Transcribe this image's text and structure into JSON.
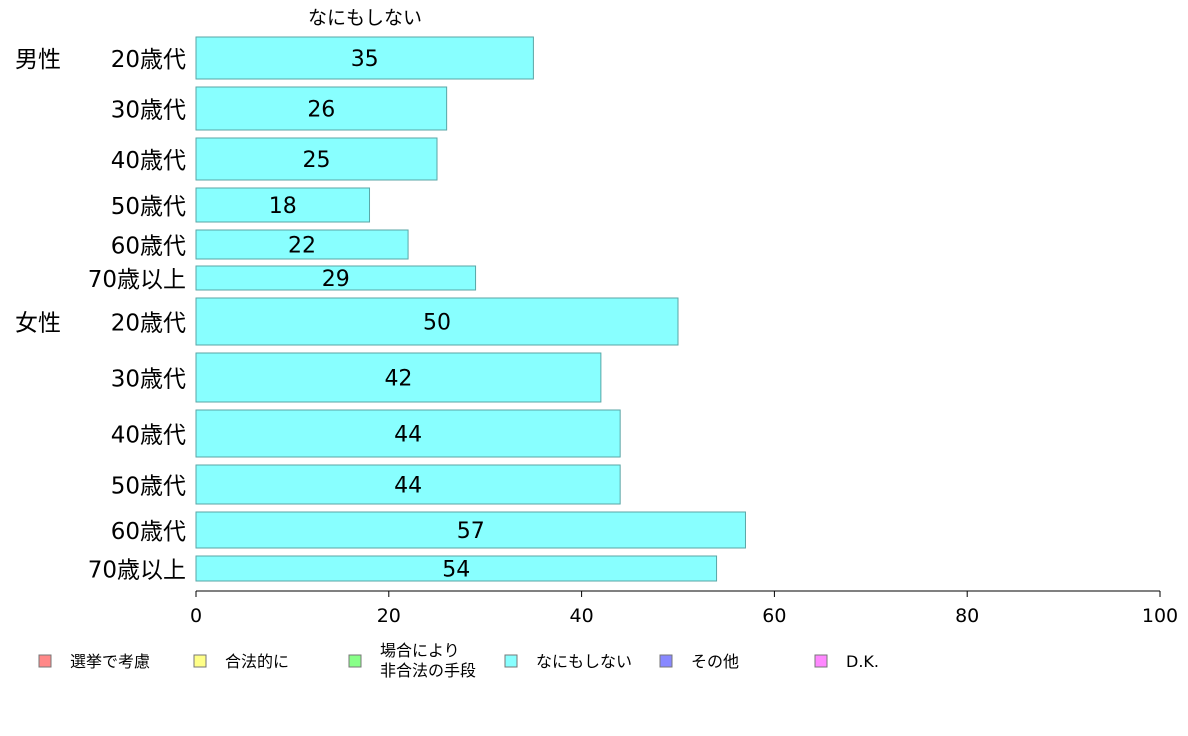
{
  "chart_data": {
    "type": "bar",
    "orientation": "horizontal",
    "title": "なにもしない",
    "groups": [
      {
        "label": "男性",
        "start_index": 0
      },
      {
        "label": "女性",
        "start_index": 6
      }
    ],
    "categories": [
      "20歳代",
      "30歳代",
      "40歳代",
      "50歳代",
      "60歳代",
      "70歳以上",
      "20歳代",
      "30歳代",
      "40歳代",
      "50歳代",
      "60歳代",
      "70歳以上"
    ],
    "series": [
      {
        "name": "なにもしない",
        "color": "#88ffff",
        "values": [
          35,
          26,
          25,
          18,
          22,
          29,
          50,
          42,
          44,
          44,
          57,
          54
        ]
      }
    ],
    "xlim": [
      0,
      100
    ],
    "xticks": [
      0,
      20,
      40,
      60,
      80,
      100
    ],
    "grid": false,
    "legend": {
      "placement": "bottom",
      "items": [
        {
          "label": "選挙で考慮",
          "color": "#ff8888"
        },
        {
          "label": "合法的に",
          "color": "#ffff88"
        },
        {
          "label": "場合により\n非合法の手段",
          "color": "#88ff88"
        },
        {
          "label": "なにもしない",
          "color": "#88ffff"
        },
        {
          "label": "その他",
          "color": "#8888ff"
        },
        {
          "label": "D.K.",
          "color": "#ff88ff"
        }
      ]
    }
  }
}
